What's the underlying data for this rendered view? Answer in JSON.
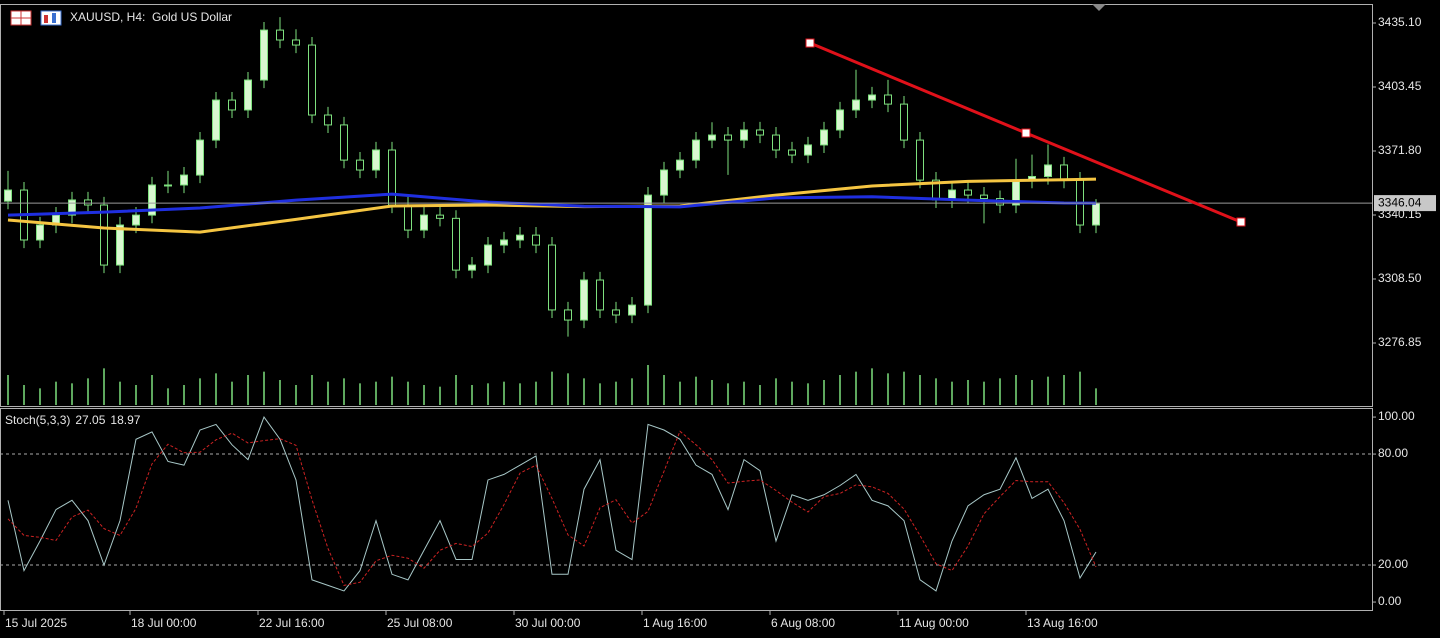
{
  "header": {
    "symbol": "XAUUSD, H4:",
    "description": "Gold US Dollar"
  },
  "chart_data": [
    {
      "type": "candlestick",
      "up_color": "#d8f8d0",
      "down_color": "#000000",
      "outline_color": "#7ee07e",
      "volume_color": "#7ee07e",
      "xlim": [
        -0.5,
        85.25
      ],
      "ylim": [
        3245.7,
        3444.5
      ],
      "yticks": [
        {
          "value": 3435.1,
          "label": "3435.10"
        },
        {
          "value": 3403.45,
          "label": "3403.45"
        },
        {
          "value": 3371.8,
          "label": "3371.80"
        },
        3340.15,
        {
          "value": 3308.5,
          "label": "3308.50"
        },
        3276.85
      ],
      "xticks": [
        {
          "value": -0.25,
          "label": "15 Jul 2025"
        },
        {
          "value": 7.625,
          "label": "18 Jul 00:00"
        },
        {
          "value": 15.625,
          "label": "22 Jul 16:00"
        },
        {
          "value": 23.625,
          "label": "25 Jul 08:00"
        },
        {
          "value": 31.625,
          "label": "30 Jul 00:00"
        },
        {
          "value": 39.625,
          "label": "1 Aug 16:00"
        },
        {
          "value": 47.625,
          "label": "6 Aug 08:00"
        },
        {
          "value": 55.625,
          "label": "11 Aug 00:00"
        },
        {
          "value": 63.625,
          "label": "13 Aug 16:00"
        }
      ],
      "candles": [
        [
          3347.0,
          3362.0,
          3343.0,
          3352.5
        ],
        [
          3352.5,
          3356.5,
          3323.8,
          3327.8
        ],
        [
          3327.8,
          3339.2,
          3323.8,
          3335.2
        ],
        [
          3335.2,
          3344.1,
          3331.2,
          3340.1
        ],
        [
          3340.1,
          3351.6,
          3336.1,
          3347.6
        ],
        [
          3347.6,
          3351.6,
          3341.1,
          3345.1
        ],
        [
          3345.1,
          3349.1,
          3311.4,
          3315.4
        ],
        [
          3315.4,
          3339.2,
          3311.4,
          3335.2
        ],
        [
          3335.2,
          3344.1,
          3331.2,
          3340.1
        ],
        [
          3340.1,
          3359.0,
          3336.1,
          3355.0
        ],
        [
          3355.0,
          3362.0,
          3351.0,
          3355.0
        ],
        [
          3355.0,
          3363.9,
          3351.0,
          3359.9
        ],
        [
          3359.9,
          3381.2,
          3355.9,
          3377.2
        ],
        [
          3377.2,
          3401.0,
          3373.2,
          3397.0
        ],
        [
          3397.0,
          3401.0,
          3388.1,
          3392.1
        ],
        [
          3392.1,
          3410.9,
          3388.1,
          3406.9
        ],
        [
          3406.9,
          3435.6,
          3402.9,
          3431.6
        ],
        [
          3431.6,
          3438.0,
          3422.7,
          3426.7
        ],
        [
          3426.7,
          3432.0,
          3420.2,
          3424.2
        ],
        [
          3424.2,
          3428.2,
          3385.6,
          3389.6
        ],
        [
          3389.6,
          3393.6,
          3380.7,
          3384.7
        ],
        [
          3384.7,
          3388.7,
          3363.3,
          3367.3
        ],
        [
          3367.3,
          3371.3,
          3358.4,
          3362.4
        ],
        [
          3362.4,
          3376.3,
          3358.4,
          3372.3
        ],
        [
          3372.3,
          3376.3,
          3341.1,
          3345.1
        ],
        [
          3345.1,
          3349.1,
          3328.7,
          3332.7
        ],
        [
          3332.7,
          3344.1,
          3328.7,
          3340.1
        ],
        [
          3340.1,
          3344.1,
          3334.5,
          3338.5
        ],
        [
          3338.5,
          3342.5,
          3308.9,
          3312.9
        ],
        [
          3312.9,
          3319.4,
          3308.9,
          3315.4
        ],
        [
          3315.4,
          3329.3,
          3311.4,
          3325.3
        ],
        [
          3325.3,
          3331.8,
          3321.3,
          3327.8
        ],
        [
          3327.8,
          3334.2,
          3323.8,
          3330.2
        ],
        [
          3330.2,
          3334.2,
          3321.3,
          3325.3
        ],
        [
          3325.3,
          3329.3,
          3289.2,
          3293.2
        ],
        [
          3293.2,
          3297.2,
          3280.0,
          3288.2
        ],
        [
          3288.2,
          3312.0,
          3284.2,
          3308.0
        ],
        [
          3308.0,
          3312.0,
          3289.2,
          3293.2
        ],
        [
          3293.2,
          3297.2,
          3286.7,
          3290.7
        ],
        [
          3290.7,
          3299.6,
          3286.7,
          3295.6
        ],
        [
          3295.6,
          3354.0,
          3291.6,
          3350.0
        ],
        [
          3350.0,
          3366.4,
          3346.0,
          3362.4
        ],
        [
          3362.4,
          3371.3,
          3358.4,
          3367.3
        ],
        [
          3367.3,
          3381.2,
          3363.3,
          3377.2
        ],
        [
          3377.2,
          3386.0,
          3373.2,
          3379.7
        ],
        [
          3379.7,
          3383.7,
          3360.0,
          3377.2
        ],
        [
          3377.2,
          3386.2,
          3373.2,
          3382.2
        ],
        [
          3382.2,
          3386.2,
          3375.7,
          3379.7
        ],
        [
          3379.7,
          3383.7,
          3368.3,
          3372.3
        ],
        [
          3372.3,
          3376.3,
          3365.8,
          3369.8
        ],
        [
          3369.8,
          3378.8,
          3365.8,
          3374.8
        ],
        [
          3374.8,
          3386.2,
          3370.8,
          3382.2
        ],
        [
          3382.2,
          3396.1,
          3378.2,
          3392.1
        ],
        [
          3392.1,
          3412.0,
          3388.1,
          3397.0
        ],
        [
          3397.0,
          3403.5,
          3393.0,
          3399.5
        ],
        [
          3399.5,
          3407.0,
          3391.0,
          3395.0
        ],
        [
          3395.0,
          3399.0,
          3373.2,
          3377.2
        ],
        [
          3377.2,
          3381.2,
          3353.4,
          3357.4
        ],
        [
          3357.4,
          3361.4,
          3343.6,
          3347.6
        ],
        [
          3347.6,
          3356.5,
          3343.6,
          3352.5
        ],
        [
          3352.5,
          3356.5,
          3346.0,
          3350.0
        ],
        [
          3350.0,
          3354.0,
          3336.0,
          3348.3
        ],
        [
          3348.3,
          3352.3,
          3341.1,
          3345.1
        ],
        [
          3345.1,
          3368.0,
          3341.1,
          3357.4
        ],
        [
          3357.4,
          3370.0,
          3353.4,
          3359.2
        ],
        [
          3359.2,
          3375.0,
          3355.2,
          3364.9
        ],
        [
          3364.9,
          3368.9,
          3353.4,
          3357.4
        ],
        [
          3357.4,
          3361.4,
          3331.2,
          3335.2
        ],
        [
          3335.2,
          3348.0,
          3331.2,
          3346.04
        ]
      ],
      "volumes": [
        9000,
        6000,
        5000,
        7000,
        6500,
        8000,
        11000,
        7000,
        6000,
        9000,
        5000,
        6000,
        8000,
        9500,
        7000,
        9000,
        10000,
        7500,
        6000,
        9000,
        7000,
        8000,
        6500,
        7000,
        8500,
        7000,
        6000,
        5500,
        9000,
        6000,
        6500,
        7000,
        6500,
        7000,
        10000,
        9500,
        8000,
        6500,
        7000,
        8000,
        12000,
        9000,
        7000,
        8500,
        7500,
        6500,
        7000,
        6000,
        8000,
        7000,
        6500,
        7500,
        9000,
        10000,
        11000,
        9500,
        10000,
        9000,
        8000,
        7000,
        7500,
        7000,
        8000,
        9000,
        7500,
        8500,
        9000,
        10000,
        5000
      ],
      "moving_averages": [
        {
          "color": "#f5c542",
          "x": [
            0,
            6,
            12,
            18,
            24,
            30,
            36,
            42,
            48,
            54,
            60,
            66,
            68
          ],
          "values": [
            3337.7,
            3333.7,
            3331.7,
            3338.0,
            3344.6,
            3345.1,
            3344.3,
            3344.6,
            3350.0,
            3354.5,
            3356.8,
            3357.6,
            3357.9
          ]
        },
        {
          "color": "#1f2fe0",
          "x": [
            0,
            6,
            12,
            18,
            24,
            30,
            36,
            42,
            48,
            54,
            60,
            66,
            68
          ],
          "values": [
            3340.1,
            3341.6,
            3343.6,
            3347.5,
            3350.5,
            3346.5,
            3344.5,
            3344.2,
            3348.6,
            3349.2,
            3347.5,
            3346.1,
            3346.0
          ]
        }
      ],
      "trendline": {
        "color": "#e0111a",
        "x": [
          50.125,
          63.625,
          77.06
        ],
        "values": [
          3425.2,
          3380.7,
          3336.7
        ]
      }
    },
    {
      "type": "line",
      "title": "Stoch(5,3,3)",
      "xlim": [
        -0.5,
        85.25
      ],
      "ylim": [
        -4.3,
        104.9
      ],
      "yticks": [
        {
          "value": 100,
          "label": "100.00"
        },
        {
          "value": 80,
          "label": "80.00"
        },
        {
          "value": 20,
          "label": "20.00"
        },
        {
          "value": 0,
          "label": "0.00"
        }
      ],
      "levels": [
        80,
        20
      ],
      "series": [
        {
          "color": "#a8c8c8",
          "values": [
            55,
            17,
            33,
            50,
            55,
            44,
            20,
            44,
            88,
            92,
            76,
            74,
            93,
            96,
            85,
            77,
            100,
            88,
            66,
            12,
            9,
            6,
            17,
            44,
            15,
            12,
            28,
            44,
            23,
            23,
            66,
            69,
            74,
            79,
            15,
            15,
            61,
            77,
            28,
            23,
            96,
            93,
            88,
            74,
            69,
            50,
            77,
            71,
            33,
            58,
            55,
            58,
            63,
            69,
            55,
            52,
            44,
            12,
            6,
            33,
            52,
            58,
            61,
            78,
            56,
            61,
            44,
            13,
            27.05
          ]
        },
        {
          "color": "#cc2222",
          "dashed": true,
          "values": [
            45,
            36,
            35,
            33.3,
            46,
            49.7,
            39.7,
            36,
            50.7,
            74.7,
            85.3,
            80.7,
            81,
            87.7,
            91.3,
            86,
            87.3,
            88.3,
            84.7,
            55.3,
            29,
            9,
            10.7,
            22.3,
            25.3,
            23.7,
            18.3,
            28,
            31.7,
            30,
            37.3,
            52.7,
            69.7,
            74,
            56,
            36.3,
            30.3,
            51,
            55.3,
            42.7,
            49,
            70.7,
            92.3,
            85,
            77,
            64.3,
            65.3,
            66,
            60.3,
            54,
            48.7,
            57,
            58.7,
            63.3,
            62.3,
            58.7,
            50.3,
            36,
            20.7,
            17,
            30.3,
            47.7,
            57,
            65.7,
            65,
            65,
            53.7,
            39.3,
            18.97
          ]
        }
      ]
    }
  ]
}
